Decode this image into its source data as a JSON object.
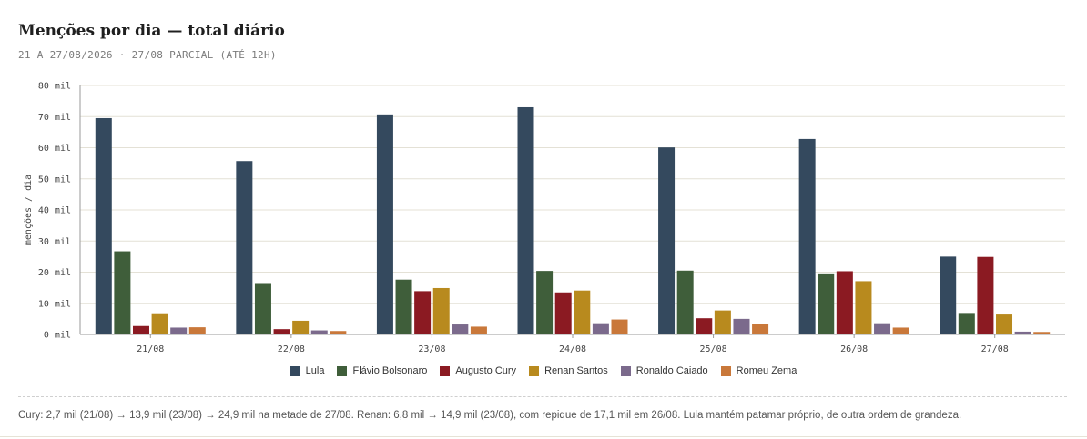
{
  "header": {
    "title": "Menções por dia — total diário",
    "subtitle": "21 A 27/08/2026 · 27/08 PARCIAL (ATÉ 12H)"
  },
  "chart_data": {
    "type": "bar",
    "ylabel": "menções / dia",
    "ylim": [
      0,
      80000
    ],
    "yticks": [
      0,
      10000,
      20000,
      30000,
      40000,
      50000,
      60000,
      70000,
      80000
    ],
    "ytick_labels": [
      "0 mil",
      "10 mil",
      "20 mil",
      "30 mil",
      "40 mil",
      "50 mil",
      "60 mil",
      "70 mil",
      "80 mil"
    ],
    "grid": true,
    "legend_position": "bottom",
    "categories": [
      "21/08",
      "22/08",
      "23/08",
      "24/08",
      "25/08",
      "26/08",
      "27/08"
    ],
    "series": [
      {
        "name": "Lula",
        "color": "#34495e",
        "values": [
          69500,
          55700,
          70700,
          73000,
          60100,
          62800,
          25000
        ]
      },
      {
        "name": "Flávio Bolsonaro",
        "color": "#3f5e3a",
        "values": [
          26700,
          16500,
          17600,
          20400,
          20500,
          19600,
          6900
        ]
      },
      {
        "name": "Augusto Cury",
        "color": "#8b1a22",
        "values": [
          2700,
          1700,
          13900,
          13500,
          5200,
          20300,
          24900
        ]
      },
      {
        "name": "Renan Santos",
        "color": "#b88a1e",
        "values": [
          6800,
          4400,
          14900,
          14100,
          7700,
          17100,
          6400
        ]
      },
      {
        "name": "Ronaldo Caiado",
        "color": "#7b6a8c",
        "values": [
          2200,
          1300,
          3200,
          3600,
          5000,
          3600,
          900
        ]
      },
      {
        "name": "Romeu Zema",
        "color": "#c9783a",
        "values": [
          2300,
          1100,
          2500,
          4800,
          3500,
          2200,
          800
        ]
      }
    ]
  },
  "note": "Cury: 2,7 mil (21/08) → 13,9 mil (23/08) → 24,9 mil na metade de 27/08. Renan: 6,8 mil → 14,9 mil (23/08), com repique de 17,1 mil em 26/08. Lula mantém patamar próprio, de outra ordem de grandeza."
}
